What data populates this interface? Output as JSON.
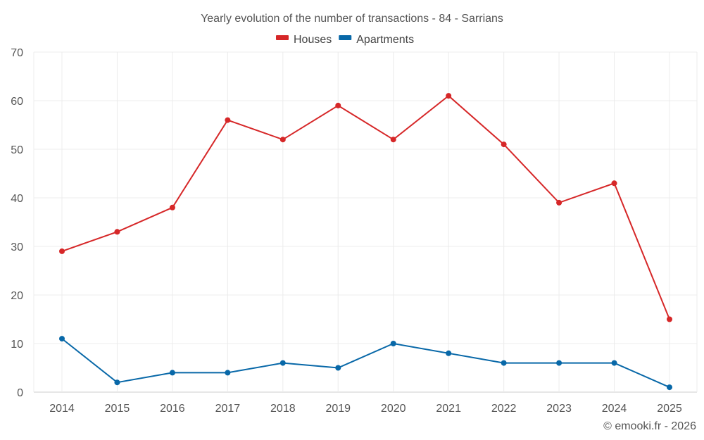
{
  "chart_data": {
    "type": "line",
    "title": "Yearly evolution of the number of transactions - 84 - Sarrians",
    "xlabel": "",
    "ylabel": "",
    "categories": [
      "2014",
      "2015",
      "2016",
      "2017",
      "2018",
      "2019",
      "2020",
      "2021",
      "2022",
      "2023",
      "2024",
      "2025"
    ],
    "series": [
      {
        "name": "Houses",
        "color": "#d62728",
        "values": [
          29,
          33,
          38,
          56,
          52,
          59,
          52,
          61,
          51,
          39,
          43,
          15
        ]
      },
      {
        "name": "Apartments",
        "color": "#0868a8",
        "values": [
          11,
          2,
          4,
          4,
          6,
          5,
          10,
          8,
          6,
          6,
          6,
          1
        ]
      }
    ],
    "ylim": [
      0,
      70
    ],
    "yticks": [
      0,
      10,
      20,
      30,
      40,
      50,
      60,
      70
    ],
    "grid": true,
    "legend": "top-center"
  },
  "credit": "© emooki.fr - 2026"
}
